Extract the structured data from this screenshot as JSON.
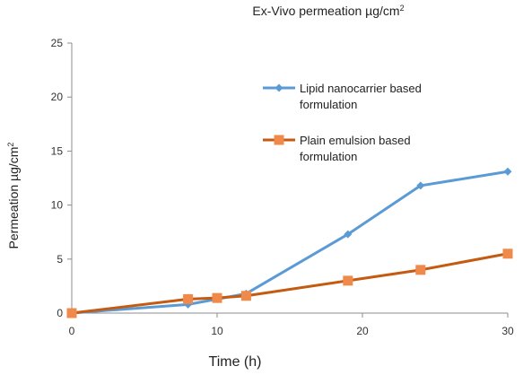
{
  "chart_data": {
    "type": "line",
    "title": "Ex-Vivo permeation µg/cm",
    "title_sup": "2",
    "xlabel": "Time (h)",
    "ylabel": "Permeation µg/cm",
    "ylabel_sup": "2",
    "xlim": [
      0,
      30
    ],
    "ylim": [
      0,
      25
    ],
    "xticks": [
      0,
      10,
      20,
      30
    ],
    "yticks": [
      0,
      5,
      10,
      15,
      20,
      25
    ],
    "grid": false,
    "legend_position": "top-right",
    "series": [
      {
        "name": "Lipid nanocarrier based formulation",
        "name_lines": [
          "Lipid nanocarrier based",
          "formulation"
        ],
        "marker": "diamond",
        "color": "#5b9bd5",
        "x": [
          0,
          8,
          10,
          12,
          19,
          24,
          30
        ],
        "y": [
          0,
          0.8,
          1.3,
          1.8,
          7.3,
          11.8,
          13.1
        ]
      },
      {
        "name": "Plain emulsion based formulation",
        "name_lines": [
          "Plain emulsion based",
          "formulation"
        ],
        "marker": "square",
        "color": "#c55a11",
        "marker_color": "#f08a4b",
        "x": [
          0,
          8,
          10,
          12,
          19,
          24,
          30
        ],
        "y": [
          0,
          1.3,
          1.4,
          1.6,
          3.0,
          4.0,
          5.5
        ]
      }
    ]
  }
}
